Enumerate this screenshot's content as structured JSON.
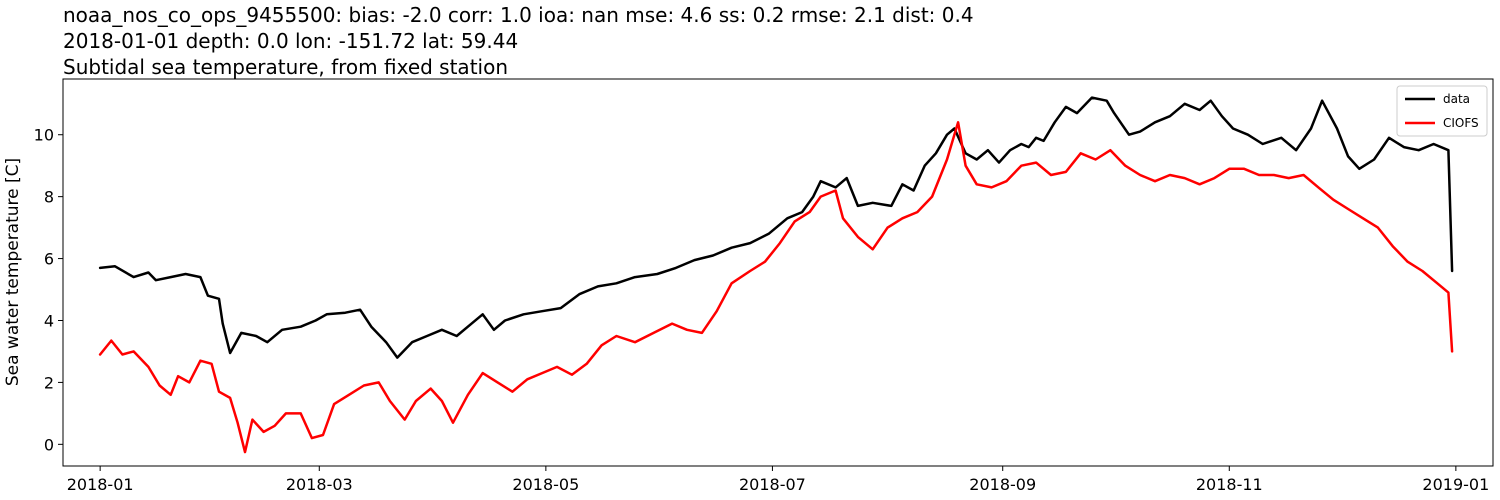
{
  "chart_data": {
    "type": "line",
    "title_lines": [
      "noaa_nos_co_ops_9455500: bias: -2.0  corr: 1.0  ioa: nan  mse: 4.6  ss: 0.2  rmse: 2.1  dist: 0.4",
      "2018-01-01 depth: 0.0 lon: -151.72 lat: 59.44",
      "Subtidal sea temperature, from fixed station"
    ],
    "xlabel": "",
    "ylabel": "Sea water temperature [C]",
    "x_ticks": [
      "2018-01",
      "2018-03",
      "2018-05",
      "2018-07",
      "2018-09",
      "2018-11",
      "2019-01"
    ],
    "y_ticks": [
      0,
      2,
      4,
      6,
      8,
      10
    ],
    "xlim": [
      "2017-12-22",
      "2019-01-11"
    ],
    "ylim": [
      -0.7,
      11.8
    ],
    "grid": false,
    "legend_position": "top-right",
    "series": [
      {
        "name": "data",
        "color": "#000000",
        "points": [
          [
            "2018-01-01",
            5.7
          ],
          [
            "2018-01-05",
            5.75
          ],
          [
            "2018-01-10",
            5.4
          ],
          [
            "2018-01-14",
            5.55
          ],
          [
            "2018-01-16",
            5.3
          ],
          [
            "2018-01-20",
            5.4
          ],
          [
            "2018-01-24",
            5.5
          ],
          [
            "2018-01-28",
            5.4
          ],
          [
            "2018-01-30",
            4.8
          ],
          [
            "2018-02-02",
            4.7
          ],
          [
            "2018-02-03",
            3.9
          ],
          [
            "2018-02-05",
            2.95
          ],
          [
            "2018-02-08",
            3.6
          ],
          [
            "2018-02-12",
            3.5
          ],
          [
            "2018-02-15",
            3.3
          ],
          [
            "2018-02-19",
            3.7
          ],
          [
            "2018-02-24",
            3.8
          ],
          [
            "2018-02-28",
            4.0
          ],
          [
            "2018-03-03",
            4.2
          ],
          [
            "2018-03-08",
            4.25
          ],
          [
            "2018-03-12",
            4.35
          ],
          [
            "2018-03-15",
            3.8
          ],
          [
            "2018-03-19",
            3.3
          ],
          [
            "2018-03-22",
            2.8
          ],
          [
            "2018-03-26",
            3.3
          ],
          [
            "2018-03-30",
            3.5
          ],
          [
            "2018-04-03",
            3.7
          ],
          [
            "2018-04-07",
            3.5
          ],
          [
            "2018-04-11",
            3.9
          ],
          [
            "2018-04-14",
            4.2
          ],
          [
            "2018-04-17",
            3.7
          ],
          [
            "2018-04-20",
            4.0
          ],
          [
            "2018-04-25",
            4.2
          ],
          [
            "2018-04-30",
            4.3
          ],
          [
            "2018-05-05",
            4.4
          ],
          [
            "2018-05-10",
            4.85
          ],
          [
            "2018-05-15",
            5.1
          ],
          [
            "2018-05-20",
            5.2
          ],
          [
            "2018-05-25",
            5.4
          ],
          [
            "2018-05-31",
            5.5
          ],
          [
            "2018-06-05",
            5.7
          ],
          [
            "2018-06-10",
            5.95
          ],
          [
            "2018-06-15",
            6.1
          ],
          [
            "2018-06-20",
            6.35
          ],
          [
            "2018-06-25",
            6.5
          ],
          [
            "2018-06-30",
            6.8
          ],
          [
            "2018-07-05",
            7.3
          ],
          [
            "2018-07-09",
            7.5
          ],
          [
            "2018-07-12",
            8.0
          ],
          [
            "2018-07-14",
            8.5
          ],
          [
            "2018-07-18",
            8.3
          ],
          [
            "2018-07-21",
            8.6
          ],
          [
            "2018-07-24",
            7.7
          ],
          [
            "2018-07-28",
            7.8
          ],
          [
            "2018-08-02",
            7.7
          ],
          [
            "2018-08-05",
            8.4
          ],
          [
            "2018-08-08",
            8.2
          ],
          [
            "2018-08-11",
            9.0
          ],
          [
            "2018-08-14",
            9.4
          ],
          [
            "2018-08-17",
            10.0
          ],
          [
            "2018-08-19",
            10.2
          ],
          [
            "2018-08-22",
            9.4
          ],
          [
            "2018-08-25",
            9.2
          ],
          [
            "2018-08-28",
            9.5
          ],
          [
            "2018-08-31",
            9.1
          ],
          [
            "2018-09-03",
            9.5
          ],
          [
            "2018-09-06",
            9.7
          ],
          [
            "2018-09-08",
            9.6
          ],
          [
            "2018-09-10",
            9.9
          ],
          [
            "2018-09-12",
            9.8
          ],
          [
            "2018-09-15",
            10.4
          ],
          [
            "2018-09-18",
            10.9
          ],
          [
            "2018-09-21",
            10.7
          ],
          [
            "2018-09-25",
            11.2
          ],
          [
            "2018-09-29",
            11.1
          ],
          [
            "2018-10-01",
            10.7
          ],
          [
            "2018-10-05",
            10.0
          ],
          [
            "2018-10-08",
            10.1
          ],
          [
            "2018-10-12",
            10.4
          ],
          [
            "2018-10-16",
            10.6
          ],
          [
            "2018-10-20",
            11.0
          ],
          [
            "2018-10-24",
            10.8
          ],
          [
            "2018-10-27",
            11.1
          ],
          [
            "2018-10-30",
            10.6
          ],
          [
            "2018-11-02",
            10.2
          ],
          [
            "2018-11-06",
            10.0
          ],
          [
            "2018-11-10",
            9.7
          ],
          [
            "2018-11-15",
            9.9
          ],
          [
            "2018-11-19",
            9.5
          ],
          [
            "2018-11-23",
            10.2
          ],
          [
            "2018-11-26",
            11.1
          ],
          [
            "2018-11-30",
            10.2
          ],
          [
            "2018-12-03",
            9.3
          ],
          [
            "2018-12-06",
            8.9
          ],
          [
            "2018-12-10",
            9.2
          ],
          [
            "2018-12-14",
            9.9
          ],
          [
            "2018-12-18",
            9.6
          ],
          [
            "2018-12-22",
            9.5
          ],
          [
            "2018-12-26",
            9.7
          ],
          [
            "2018-12-30",
            9.5
          ],
          [
            "2018-12-31",
            5.6
          ]
        ]
      },
      {
        "name": "CIOFS",
        "color": "#ff0000",
        "points": [
          [
            "2018-01-01",
            2.9
          ],
          [
            "2018-01-04",
            3.35
          ],
          [
            "2018-01-07",
            2.9
          ],
          [
            "2018-01-10",
            3.0
          ],
          [
            "2018-01-14",
            2.5
          ],
          [
            "2018-01-17",
            1.9
          ],
          [
            "2018-01-20",
            1.6
          ],
          [
            "2018-01-22",
            2.2
          ],
          [
            "2018-01-25",
            2.0
          ],
          [
            "2018-01-28",
            2.7
          ],
          [
            "2018-01-31",
            2.6
          ],
          [
            "2018-02-02",
            1.7
          ],
          [
            "2018-02-05",
            1.5
          ],
          [
            "2018-02-07",
            0.7
          ],
          [
            "2018-02-09",
            -0.25
          ],
          [
            "2018-02-11",
            0.8
          ],
          [
            "2018-02-14",
            0.4
          ],
          [
            "2018-02-17",
            0.6
          ],
          [
            "2018-02-20",
            1.0
          ],
          [
            "2018-02-24",
            1.0
          ],
          [
            "2018-02-27",
            0.2
          ],
          [
            "2018-03-02",
            0.3
          ],
          [
            "2018-03-05",
            1.3
          ],
          [
            "2018-03-09",
            1.6
          ],
          [
            "2018-03-13",
            1.9
          ],
          [
            "2018-03-17",
            2.0
          ],
          [
            "2018-03-20",
            1.4
          ],
          [
            "2018-03-24",
            0.8
          ],
          [
            "2018-03-27",
            1.4
          ],
          [
            "2018-03-31",
            1.8
          ],
          [
            "2018-04-03",
            1.4
          ],
          [
            "2018-04-06",
            0.7
          ],
          [
            "2018-04-10",
            1.6
          ],
          [
            "2018-04-14",
            2.3
          ],
          [
            "2018-04-18",
            2.0
          ],
          [
            "2018-04-22",
            1.7
          ],
          [
            "2018-04-26",
            2.1
          ],
          [
            "2018-04-30",
            2.3
          ],
          [
            "2018-05-04",
            2.5
          ],
          [
            "2018-05-08",
            2.25
          ],
          [
            "2018-05-12",
            2.6
          ],
          [
            "2018-05-16",
            3.2
          ],
          [
            "2018-05-20",
            3.5
          ],
          [
            "2018-05-25",
            3.3
          ],
          [
            "2018-05-30",
            3.6
          ],
          [
            "2018-06-04",
            3.9
          ],
          [
            "2018-06-08",
            3.7
          ],
          [
            "2018-06-12",
            3.6
          ],
          [
            "2018-06-16",
            4.3
          ],
          [
            "2018-06-20",
            5.2
          ],
          [
            "2018-06-25",
            5.6
          ],
          [
            "2018-06-29",
            5.9
          ],
          [
            "2018-07-03",
            6.5
          ],
          [
            "2018-07-07",
            7.2
          ],
          [
            "2018-07-11",
            7.5
          ],
          [
            "2018-07-14",
            8.0
          ],
          [
            "2018-07-18",
            8.2
          ],
          [
            "2018-07-20",
            7.3
          ],
          [
            "2018-07-24",
            6.7
          ],
          [
            "2018-07-28",
            6.3
          ],
          [
            "2018-08-01",
            7.0
          ],
          [
            "2018-08-05",
            7.3
          ],
          [
            "2018-08-09",
            7.5
          ],
          [
            "2018-08-13",
            8.0
          ],
          [
            "2018-08-17",
            9.2
          ],
          [
            "2018-08-20",
            10.4
          ],
          [
            "2018-08-22",
            9.0
          ],
          [
            "2018-08-25",
            8.4
          ],
          [
            "2018-08-29",
            8.3
          ],
          [
            "2018-09-02",
            8.5
          ],
          [
            "2018-09-06",
            9.0
          ],
          [
            "2018-09-10",
            9.1
          ],
          [
            "2018-09-14",
            8.7
          ],
          [
            "2018-09-18",
            8.8
          ],
          [
            "2018-09-22",
            9.4
          ],
          [
            "2018-09-26",
            9.2
          ],
          [
            "2018-09-30",
            9.5
          ],
          [
            "2018-10-04",
            9.0
          ],
          [
            "2018-10-08",
            8.7
          ],
          [
            "2018-10-12",
            8.5
          ],
          [
            "2018-10-16",
            8.7
          ],
          [
            "2018-10-20",
            8.6
          ],
          [
            "2018-10-24",
            8.4
          ],
          [
            "2018-10-28",
            8.6
          ],
          [
            "2018-11-01",
            8.9
          ],
          [
            "2018-11-05",
            8.9
          ],
          [
            "2018-11-09",
            8.7
          ],
          [
            "2018-11-13",
            8.7
          ],
          [
            "2018-11-17",
            8.6
          ],
          [
            "2018-11-21",
            8.7
          ],
          [
            "2018-11-25",
            8.3
          ],
          [
            "2018-11-29",
            7.9
          ],
          [
            "2018-12-03",
            7.6
          ],
          [
            "2018-12-07",
            7.3
          ],
          [
            "2018-12-11",
            7.0
          ],
          [
            "2018-12-15",
            6.4
          ],
          [
            "2018-12-19",
            5.9
          ],
          [
            "2018-12-23",
            5.6
          ],
          [
            "2018-12-27",
            5.2
          ],
          [
            "2018-12-30",
            4.9
          ],
          [
            "2018-12-31",
            3.0
          ]
        ]
      }
    ]
  }
}
